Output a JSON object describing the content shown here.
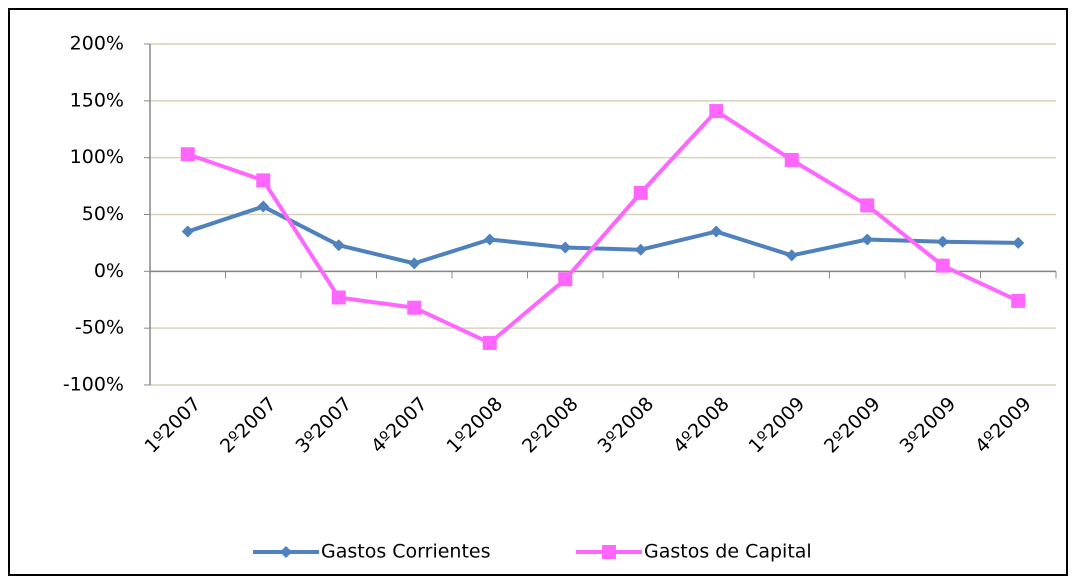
{
  "chart_data": {
    "type": "line",
    "categories": [
      "1º2007",
      "2º2007",
      "3º2007",
      "4º2007",
      "1º2008",
      "2º2008",
      "3º2008",
      "4º2008",
      "1º2009",
      "2º2009",
      "3º2009",
      "4º2009"
    ],
    "series": [
      {
        "name": "Gastos Corrientes",
        "color": "#4f81bd",
        "marker": "diamond",
        "values": [
          35,
          57,
          23,
          7,
          28,
          21,
          19,
          35,
          14,
          28,
          26,
          25
        ]
      },
      {
        "name": "Gastos de Capital",
        "color": "#ff66ff",
        "marker": "square",
        "values": [
          103,
          80,
          -23,
          -32,
          -63,
          -7,
          69,
          141,
          98,
          58,
          5,
          -26
        ]
      }
    ],
    "ylim": [
      -100,
      200
    ],
    "yticks": [
      {
        "value": -100,
        "label": "-100%"
      },
      {
        "value": -50,
        "label": "-50%"
      },
      {
        "value": 0,
        "label": "0%"
      },
      {
        "value": 50,
        "label": "50%"
      },
      {
        "value": 100,
        "label": "100%"
      },
      {
        "value": 150,
        "label": "150%"
      },
      {
        "value": 200,
        "label": "200%"
      }
    ],
    "grid": true,
    "legend": "bottom"
  }
}
